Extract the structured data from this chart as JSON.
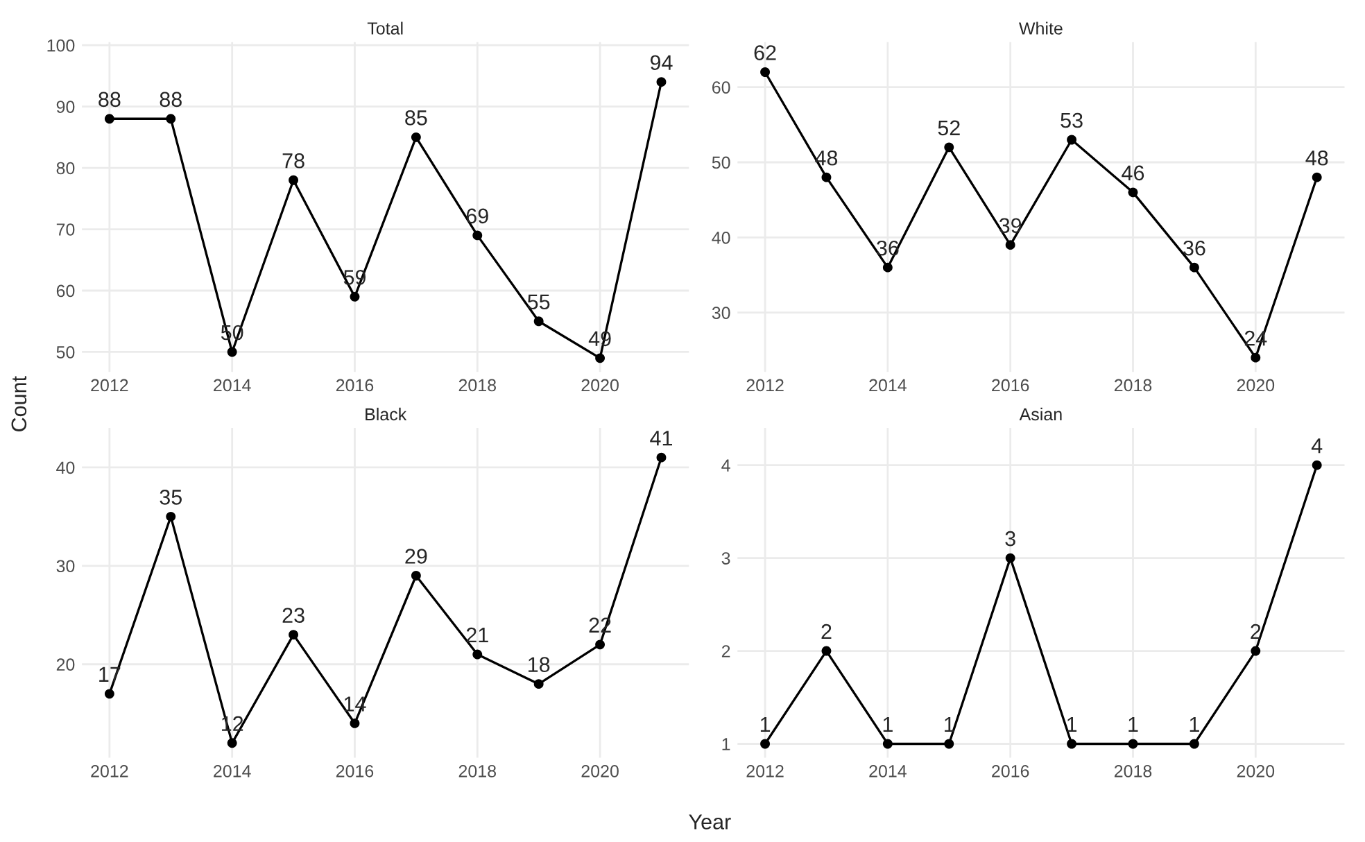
{
  "chart_data": [
    {
      "type": "line",
      "title": "Total",
      "xlabel": "Year",
      "ylabel": "Count",
      "x": [
        2012,
        2013,
        2014,
        2015,
        2016,
        2017,
        2018,
        2019,
        2020,
        2021
      ],
      "series": [
        {
          "color": "#000000",
          "values": [
            88,
            88,
            50,
            78,
            59,
            85,
            69,
            55,
            49,
            94
          ]
        }
      ],
      "xlim": [
        2011.55,
        2021.45
      ],
      "xticks": [
        2012,
        2014,
        2016,
        2018,
        2020
      ],
      "ylim": [
        46.75,
        100.5
      ],
      "yticks": [
        50,
        60,
        70,
        80,
        90,
        100
      ],
      "data_labels": true,
      "marker": "circle",
      "line_style": "solid",
      "grid": true
    },
    {
      "type": "line",
      "title": "White",
      "x": [
        2012,
        2013,
        2014,
        2015,
        2016,
        2017,
        2018,
        2019,
        2020,
        2021
      ],
      "series": [
        {
          "color": "#000000",
          "values": [
            62,
            48,
            36,
            52,
            39,
            53,
            46,
            36,
            24,
            48
          ]
        }
      ],
      "xlim": [
        2011.55,
        2021.45
      ],
      "xticks": [
        2012,
        2014,
        2016,
        2018,
        2020
      ],
      "ylim": [
        22.1,
        66
      ],
      "yticks": [
        30,
        40,
        50,
        60
      ],
      "data_labels": true,
      "marker": "circle",
      "line_style": "solid",
      "grid": true
    },
    {
      "type": "line",
      "title": "Black",
      "x": [
        2012,
        2013,
        2014,
        2015,
        2016,
        2017,
        2018,
        2019,
        2020,
        2021
      ],
      "series": [
        {
          "color": "#000000",
          "values": [
            17,
            35,
            12,
            23,
            14,
            29,
            21,
            18,
            22,
            41
          ]
        }
      ],
      "xlim": [
        2011.55,
        2021.45
      ],
      "xticks": [
        2012,
        2014,
        2016,
        2018,
        2020
      ],
      "ylim": [
        10.5,
        44
      ],
      "yticks": [
        20,
        30,
        40
      ],
      "data_labels": true,
      "marker": "circle",
      "line_style": "solid",
      "grid": true
    },
    {
      "type": "line",
      "title": "Asian",
      "x": [
        2012,
        2013,
        2014,
        2015,
        2016,
        2017,
        2018,
        2019,
        2020,
        2021
      ],
      "series": [
        {
          "color": "#000000",
          "values": [
            1,
            2,
            1,
            1,
            3,
            1,
            1,
            1,
            2,
            4
          ]
        }
      ],
      "xlim": [
        2011.55,
        2021.45
      ],
      "xticks": [
        2012,
        2014,
        2016,
        2018,
        2020
      ],
      "ylim": [
        0.85,
        4.4
      ],
      "yticks": [
        1,
        2,
        3,
        4
      ],
      "data_labels": true,
      "marker": "circle",
      "line_style": "solid",
      "grid": true
    }
  ]
}
